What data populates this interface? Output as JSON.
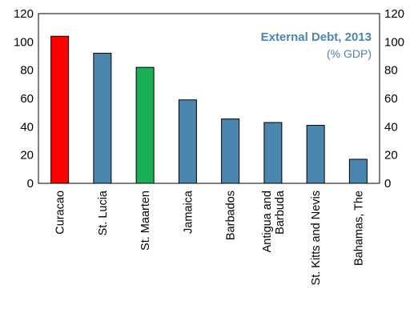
{
  "chart_data": {
    "type": "bar",
    "title": "External Debt, 2013",
    "subtitle": "(% GDP)",
    "categories": [
      "Curacao",
      "St. Lucia",
      "St. Maarten",
      "Jamaica",
      "Barbados",
      "Antigua and Barbuda",
      "St. Kitts and Nevis",
      "Bahamas, The"
    ],
    "category_lines": [
      [
        "Curacao"
      ],
      [
        "St. Lucia"
      ],
      [
        "St. Maarten"
      ],
      [
        "Jamaica"
      ],
      [
        "Barbados"
      ],
      [
        "Antigua and",
        "Barbuda"
      ],
      [
        "St. Kitts and Nevis"
      ],
      [
        "Bahamas, The"
      ]
    ],
    "values": [
      104,
      92,
      82,
      59,
      45.5,
      43,
      41,
      17
    ],
    "bar_colors": [
      "#ff0000",
      "#4a86ad",
      "#1aaf54",
      "#4a86ad",
      "#4a86ad",
      "#4a86ad",
      "#4a86ad",
      "#4a86ad"
    ],
    "ylim": [
      0,
      120
    ],
    "yticks": [
      0,
      20,
      40,
      60,
      80,
      100,
      120
    ],
    "secondary_yaxis": true,
    "grid": false,
    "xlabel": "",
    "ylabel": ""
  }
}
